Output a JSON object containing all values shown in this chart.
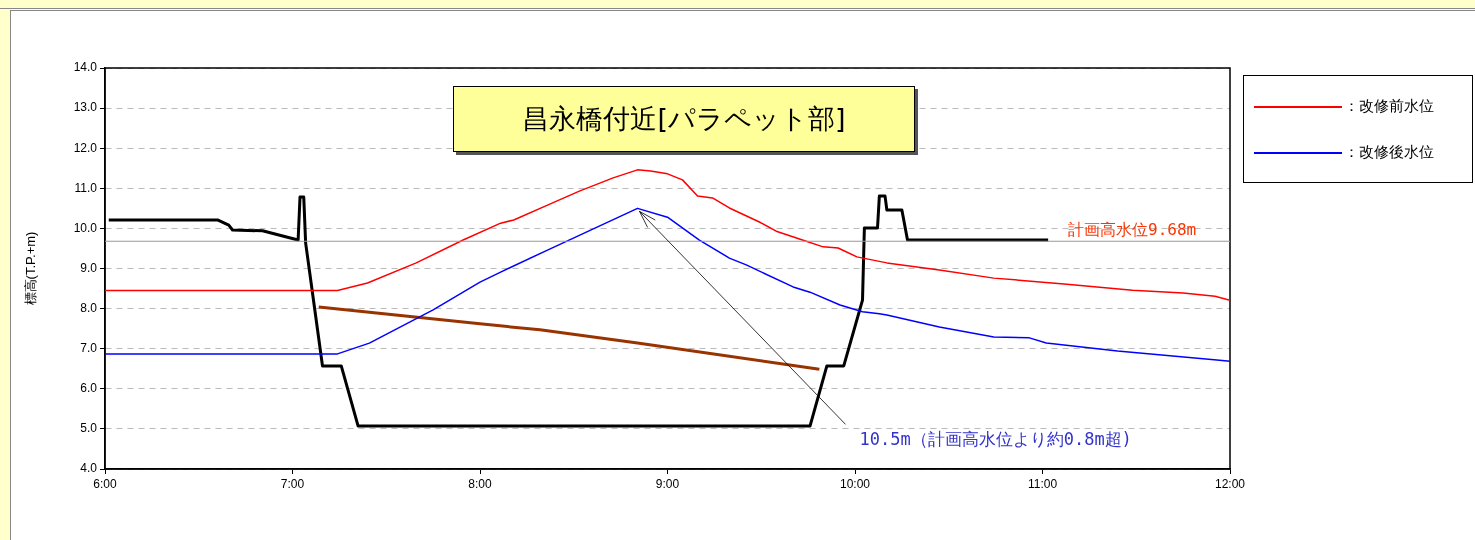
{
  "chart_data": {
    "type": "line",
    "title": "昌永橋付近[パラペット部]",
    "ylabel": "標高(T.P.+m)",
    "xlim": [
      6,
      12
    ],
    "xticks": [
      {
        "value": 6,
        "label": "6:00"
      },
      {
        "value": 7,
        "label": "7:00"
      },
      {
        "value": 8,
        "label": "8:00"
      },
      {
        "value": 9,
        "label": "9:00"
      },
      {
        "value": 10,
        "label": "10:00"
      },
      {
        "value": 11,
        "label": "11:00"
      },
      {
        "value": 12,
        "label": "12:00"
      }
    ],
    "ylim": [
      4,
      14
    ],
    "yticks": [
      {
        "value": 4,
        "label": "4.0"
      },
      {
        "value": 5,
        "label": "5.0"
      },
      {
        "value": 6,
        "label": "6.0"
      },
      {
        "value": 7,
        "label": "7.0"
      },
      {
        "value": 8,
        "label": "8.0"
      },
      {
        "value": 9,
        "label": "9.0"
      },
      {
        "value": 10,
        "label": "10.0"
      },
      {
        "value": 11,
        "label": "11.0"
      },
      {
        "value": 12,
        "label": "12.0"
      },
      {
        "value": 13,
        "label": "13.0"
      },
      {
        "value": 14,
        "label": "14.0"
      }
    ],
    "grid": "y",
    "legend": "top right",
    "marker": "none",
    "line_style": "solid",
    "series": [
      {
        "name": "：改修前水位",
        "color": "#ff0000",
        "x": [
          6,
          7.24,
          7.4,
          7.66,
          7.91,
          8.11,
          8.18,
          8.36,
          8.53,
          8.71,
          8.84,
          8.91,
          9.0,
          9.08,
          9.16,
          9.24,
          9.33,
          9.49,
          9.58,
          9.72,
          9.83,
          9.91,
          10.01,
          10.17,
          10.45,
          10.74,
          11.13,
          11.48,
          11.75,
          11.92,
          12
        ],
        "values": [
          8.45,
          8.45,
          8.64,
          9.14,
          9.71,
          10.13,
          10.21,
          10.58,
          10.93,
          11.26,
          11.46,
          11.43,
          11.36,
          11.21,
          10.81,
          10.76,
          10.51,
          10.16,
          9.93,
          9.71,
          9.54,
          9.51,
          9.29,
          9.14,
          8.96,
          8.76,
          8.61,
          8.46,
          8.39,
          8.31,
          8.21
        ]
      },
      {
        "name": "：改修後水位",
        "color": "#0000ff",
        "x": [
          6,
          7.24,
          7.41,
          7.75,
          8.0,
          8.11,
          8.36,
          8.84,
          9.0,
          9.17,
          9.33,
          9.42,
          9.67,
          9.76,
          9.92,
          10.04,
          10.13,
          10.17,
          10.45,
          10.74,
          10.93,
          11.02,
          11.4,
          11.93,
          12
        ],
        "values": [
          6.87,
          6.87,
          7.14,
          7.97,
          8.66,
          8.91,
          9.46,
          10.5,
          10.28,
          9.71,
          9.26,
          9.09,
          8.54,
          8.41,
          8.09,
          7.92,
          7.87,
          7.84,
          7.54,
          7.29,
          7.27,
          7.14,
          6.94,
          6.72,
          6.69
        ]
      },
      {
        "color": "#000000",
        "x": [
          6.02,
          6.6,
          6.66,
          6.68,
          6.84,
          7.03,
          7.04,
          7.06,
          7.07,
          7.16,
          7.26,
          7.35,
          9.76,
          9.85,
          9.94,
          10.04,
          10.05,
          10.12,
          10.13,
          10.16,
          10.17,
          10.25,
          10.28,
          11.03
        ],
        "values": [
          10.21,
          10.21,
          10.08,
          9.96,
          9.94,
          9.71,
          10.78,
          10.78,
          9.64,
          6.57,
          6.57,
          5.07,
          5.07,
          6.57,
          6.57,
          8.21,
          10.01,
          10.01,
          10.81,
          10.81,
          10.46,
          10.46,
          9.71,
          9.71
        ]
      },
      {
        "color": "#993300",
        "x": [
          7.14,
          8.0,
          8.32,
          8.84,
          9.81
        ],
        "values": [
          8.04,
          7.62,
          7.47,
          7.14,
          6.49
        ]
      }
    ],
    "ref_lines": [
      {
        "axis": "y",
        "value": 9.68,
        "label": "計画高水位9.68m",
        "color": "#999999"
      }
    ],
    "annotations": [
      {
        "text": "10.5m（計画高水位より約0.8m超)",
        "x": 8.84,
        "y": 10.5
      }
    ]
  }
}
